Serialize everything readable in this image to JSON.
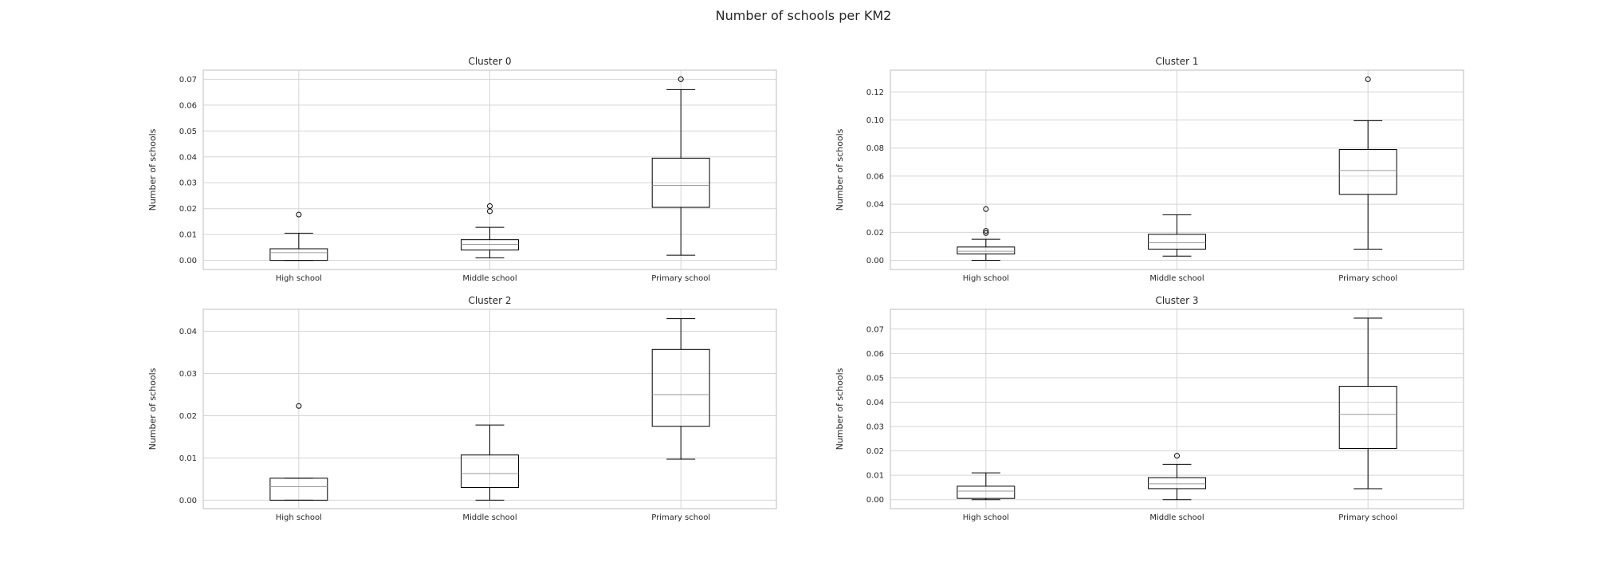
{
  "figure": {
    "title": "Number of schools per KM2"
  },
  "chart_data": [
    {
      "type": "box",
      "title": "Cluster 0",
      "ylabel": "Number of schools",
      "xlabel": "",
      "categories": [
        "High school",
        "Middle school",
        "Primary school"
      ],
      "ylim": [
        -0.0035,
        0.0735
      ],
      "yticks": [
        0.0,
        0.01,
        0.02,
        0.03,
        0.04,
        0.05,
        0.06,
        0.07
      ],
      "ytick_labels": [
        "0.00",
        "0.01",
        "0.02",
        "0.03",
        "0.04",
        "0.05",
        "0.06",
        "0.07"
      ],
      "grid": true,
      "boxes": [
        {
          "whislo": 0.0,
          "q1": 0.0,
          "med": 0.003,
          "q3": 0.0045,
          "whishi": 0.0105,
          "fliers": [
            0.0177
          ]
        },
        {
          "whislo": 0.001,
          "q1": 0.004,
          "med": 0.0062,
          "q3": 0.008,
          "whishi": 0.0128,
          "fliers": [
            0.019,
            0.021
          ]
        },
        {
          "whislo": 0.002,
          "q1": 0.0205,
          "med": 0.029,
          "q3": 0.0395,
          "whishi": 0.066,
          "fliers": [
            0.07
          ]
        }
      ]
    },
    {
      "type": "box",
      "title": "Cluster 1",
      "ylabel": "Number of schools",
      "xlabel": "",
      "categories": [
        "High school",
        "Middle school",
        "Primary school"
      ],
      "ylim": [
        -0.0065,
        0.1355
      ],
      "yticks": [
        0.0,
        0.02,
        0.04,
        0.06,
        0.08,
        0.1,
        0.12
      ],
      "ytick_labels": [
        "0.00",
        "0.02",
        "0.04",
        "0.06",
        "0.08",
        "0.10",
        "0.12"
      ],
      "grid": true,
      "boxes": [
        {
          "whislo": 0.0,
          "q1": 0.0045,
          "med": 0.0065,
          "q3": 0.0095,
          "whishi": 0.015,
          "fliers": [
            0.0195,
            0.021,
            0.0365
          ]
        },
        {
          "whislo": 0.003,
          "q1": 0.008,
          "med": 0.0125,
          "q3": 0.0185,
          "whishi": 0.0325,
          "fliers": []
        },
        {
          "whislo": 0.008,
          "q1": 0.047,
          "med": 0.064,
          "q3": 0.079,
          "whishi": 0.0995,
          "fliers": [
            0.129
          ]
        }
      ]
    },
    {
      "type": "box",
      "title": "Cluster 2",
      "ylabel": "Number of schools",
      "xlabel": "",
      "categories": [
        "High school",
        "Middle school",
        "Primary school"
      ],
      "ylim": [
        -0.002,
        0.0452
      ],
      "yticks": [
        0.0,
        0.01,
        0.02,
        0.03,
        0.04
      ],
      "ytick_labels": [
        "0.00",
        "0.01",
        "0.02",
        "0.03",
        "0.04"
      ],
      "grid": true,
      "boxes": [
        {
          "whislo": 0.0,
          "q1": 0.0,
          "med": 0.0032,
          "q3": 0.0052,
          "whishi": 0.0052,
          "fliers": [
            0.0223
          ]
        },
        {
          "whislo": 0.0,
          "q1": 0.003,
          "med": 0.0063,
          "q3": 0.0107,
          "whishi": 0.0178,
          "fliers": []
        },
        {
          "whislo": 0.0097,
          "q1": 0.0175,
          "med": 0.025,
          "q3": 0.0357,
          "whishi": 0.043,
          "fliers": []
        }
      ]
    },
    {
      "type": "box",
      "title": "Cluster 3",
      "ylabel": "Number of schools",
      "xlabel": "",
      "categories": [
        "High school",
        "Middle school",
        "Primary school"
      ],
      "ylim": [
        -0.0037,
        0.0781
      ],
      "yticks": [
        0.0,
        0.01,
        0.02,
        0.03,
        0.04,
        0.05,
        0.06,
        0.07
      ],
      "ytick_labels": [
        "0.00",
        "0.01",
        "0.02",
        "0.03",
        "0.04",
        "0.05",
        "0.06",
        "0.07"
      ],
      "grid": true,
      "boxes": [
        {
          "whislo": 0.0,
          "q1": 0.0005,
          "med": 0.0035,
          "q3": 0.0055,
          "whishi": 0.011,
          "fliers": []
        },
        {
          "whislo": 0.0,
          "q1": 0.0045,
          "med": 0.0065,
          "q3": 0.009,
          "whishi": 0.0145,
          "fliers": [
            0.018
          ]
        },
        {
          "whislo": 0.0045,
          "q1": 0.021,
          "med": 0.035,
          "q3": 0.0465,
          "whishi": 0.0745,
          "fliers": []
        }
      ]
    }
  ]
}
